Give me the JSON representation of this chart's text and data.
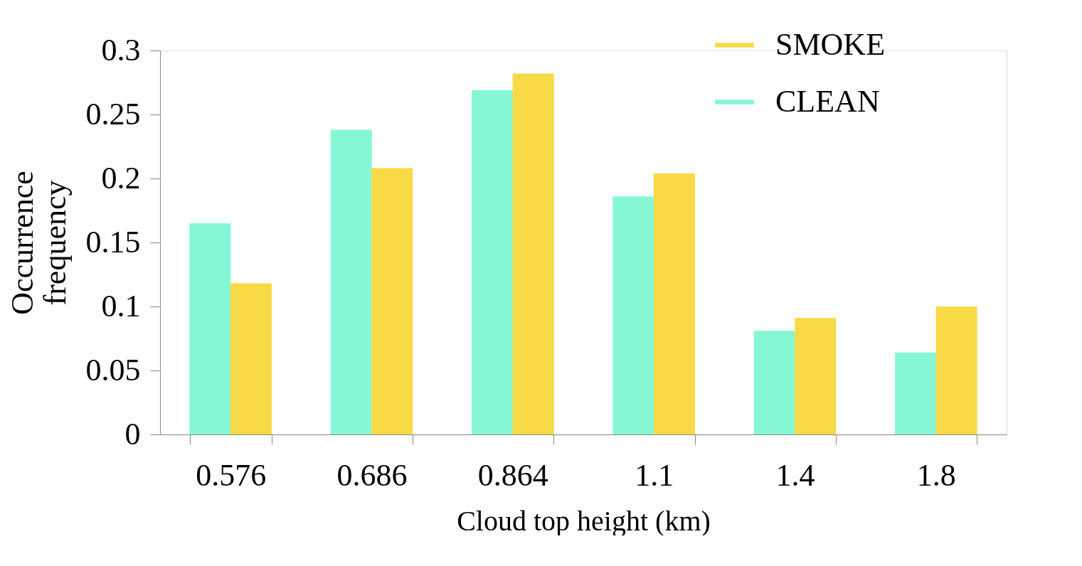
{
  "chart_data": {
    "type": "bar",
    "xlabel": "Cloud top height (km)",
    "ylabel": "Occurrence frequency",
    "categories": [
      "0.576",
      "0.686",
      "0.864",
      "1.1",
      "1.4",
      "1.8"
    ],
    "series": [
      {
        "name": "CLEAN",
        "color": "#86f7d5",
        "values": [
          0.165,
          0.238,
          0.269,
          0.186,
          0.081,
          0.064
        ]
      },
      {
        "name": "SMOKE",
        "color": "#f7da45",
        "values": [
          0.118,
          0.208,
          0.282,
          0.204,
          0.091,
          0.1
        ]
      }
    ],
    "ylim": [
      0,
      0.3
    ],
    "yticks": [
      0,
      0.05,
      0.1,
      0.15,
      0.2,
      0.25,
      0.3
    ],
    "grid": false,
    "legend": "top right"
  }
}
